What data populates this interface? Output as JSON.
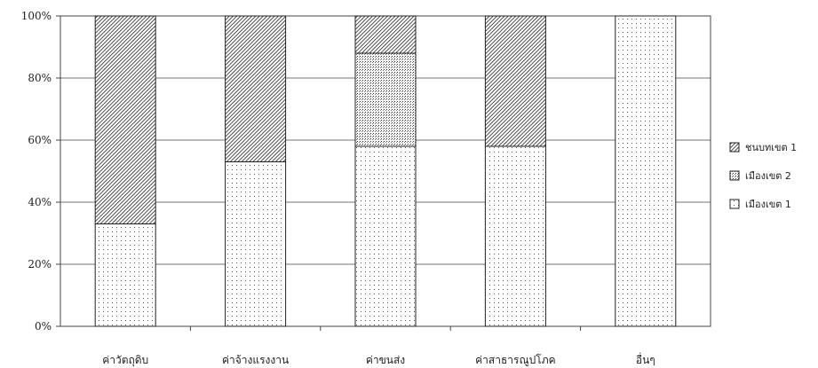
{
  "chart_data": {
    "type": "bar",
    "stacked": true,
    "title": "",
    "xlabel": "",
    "ylabel": "",
    "ylim": [
      0,
      100
    ],
    "y_ticks": [
      "0%",
      "20%",
      "40%",
      "60%",
      "80%",
      "100%"
    ],
    "grid": true,
    "legend_position": "right",
    "categories": [
      "ค่าวัตถุดิบ",
      "ค่าจ้างแรงงาน",
      "ค่าขนส่ง",
      "ค่าสาธารณูปโภค",
      "อื่นๆ"
    ],
    "series": [
      {
        "name": "เมืองเขต 1",
        "pattern": "sparse-dots",
        "values": [
          33,
          53,
          58,
          58,
          100
        ]
      },
      {
        "name": "เมืองเขต 2",
        "pattern": "dense-dots",
        "values": [
          0,
          0,
          30,
          0,
          0
        ]
      },
      {
        "name": "ชนบทเขต 1",
        "pattern": "diagonal-hatch",
        "values": [
          67,
          47,
          12,
          42,
          0
        ]
      }
    ],
    "legend_order": [
      "ชนบทเขต 1",
      "เมืองเขต 2",
      "เมืองเขต 1"
    ]
  }
}
